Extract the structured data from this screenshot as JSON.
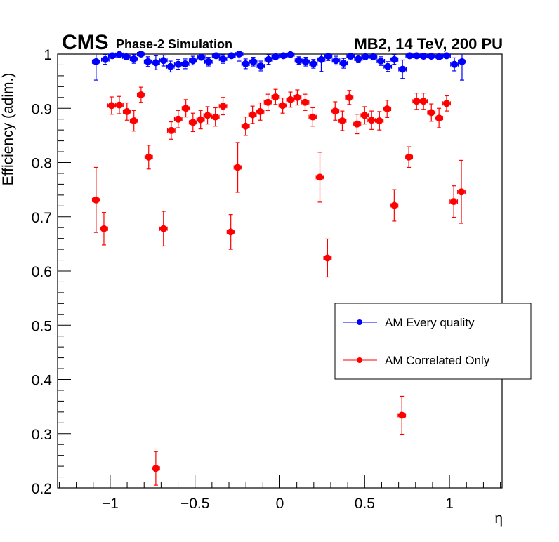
{
  "chart_data": {
    "type": "scatter",
    "title_left_main": "CMS",
    "title_left_sub": "Phase-2 Simulation",
    "title_right": "MB2, 14 TeV, 200 PU",
    "xlabel": "η",
    "ylabel": "Efficiency (adim.)",
    "xlim": [
      -1.31,
      1.31
    ],
    "ylim": [
      0.2,
      1.0
    ],
    "xticks": [
      -1,
      -0.5,
      0,
      0.5,
      1
    ],
    "xtick_labels": [
      "−1",
      "−0.5",
      "0",
      "0.5",
      "1"
    ],
    "yticks": [
      0.2,
      0.3,
      0.4,
      0.5,
      0.6,
      0.7,
      0.8,
      0.9,
      1.0
    ],
    "ytick_labels": [
      "0.2",
      "0.3",
      "0.4",
      "0.5",
      "0.6",
      "0.7",
      "0.8",
      "0.9",
      "1"
    ],
    "grid": false,
    "legend_position": "center-right",
    "x_bin_half_width": 0.022,
    "series": [
      {
        "name": "AM Every quality",
        "color": "#0000ff",
        "x": [
          -1.083,
          -1.029,
          -0.988,
          -0.946,
          -0.905,
          -0.86,
          -0.818,
          -0.777,
          -0.731,
          -0.686,
          -0.645,
          -0.599,
          -0.558,
          -0.512,
          -0.463,
          -0.421,
          -0.376,
          -0.335,
          -0.285,
          -0.24,
          -0.202,
          -0.157,
          -0.112,
          -0.066,
          -0.025,
          0.021,
          0.062,
          0.112,
          0.153,
          0.198,
          0.244,
          0.285,
          0.331,
          0.376,
          0.417,
          0.463,
          0.504,
          0.55,
          0.595,
          0.636,
          0.674,
          0.723,
          0.765,
          0.806,
          0.847,
          0.893,
          0.938,
          0.983,
          1.029,
          1.074
        ],
        "y": [
          0.986,
          0.99,
          0.997,
          0.999,
          0.995,
          0.991,
          1.0,
          0.986,
          0.984,
          0.988,
          0.977,
          0.981,
          0.982,
          0.988,
          0.994,
          0.986,
          0.997,
          0.991,
          0.997,
          1.0,
          0.982,
          0.986,
          0.978,
          0.99,
          0.995,
          0.997,
          0.999,
          0.988,
          0.986,
          0.982,
          0.99,
          0.996,
          0.988,
          0.983,
          0.996,
          0.991,
          0.995,
          0.995,
          0.987,
          0.977,
          0.99,
          0.972,
          0.997,
          0.997,
          0.996,
          0.996,
          0.995,
          0.997,
          0.981,
          0.986
        ],
        "yerr": [
          0.034,
          0.009,
          0.004,
          0.003,
          0.005,
          0.008,
          0.003,
          0.009,
          0.013,
          0.01,
          0.01,
          0.009,
          0.009,
          0.008,
          0.005,
          0.008,
          0.004,
          0.008,
          0.004,
          0.013,
          0.009,
          0.008,
          0.009,
          0.009,
          0.005,
          0.004,
          0.003,
          0.007,
          0.008,
          0.008,
          0.022,
          0.008,
          0.008,
          0.009,
          0.005,
          0.007,
          0.005,
          0.005,
          0.008,
          0.009,
          0.009,
          0.017,
          0.003,
          0.003,
          0.003,
          0.004,
          0.005,
          0.003,
          0.012,
          0.034
        ]
      },
      {
        "name": "AM Correlated Only",
        "color": "#ff0000",
        "x": [
          -1.083,
          -1.037,
          -0.992,
          -0.946,
          -0.901,
          -0.86,
          -0.818,
          -0.773,
          -0.731,
          -0.686,
          -0.64,
          -0.599,
          -0.554,
          -0.512,
          -0.467,
          -0.426,
          -0.38,
          -0.335,
          -0.289,
          -0.248,
          -0.202,
          -0.161,
          -0.116,
          -0.07,
          -0.025,
          0.017,
          0.062,
          0.103,
          0.149,
          0.194,
          0.236,
          0.281,
          0.326,
          0.368,
          0.409,
          0.455,
          0.5,
          0.541,
          0.587,
          0.632,
          0.674,
          0.719,
          0.76,
          0.806,
          0.847,
          0.893,
          0.938,
          0.983,
          1.025,
          1.07
        ],
        "y": [
          0.731,
          0.678,
          0.905,
          0.906,
          0.894,
          0.877,
          0.925,
          0.81,
          0.236,
          0.678,
          0.859,
          0.88,
          0.9,
          0.874,
          0.879,
          0.887,
          0.884,
          0.904,
          0.672,
          0.791,
          0.867,
          0.888,
          0.894,
          0.911,
          0.921,
          0.905,
          0.916,
          0.92,
          0.911,
          0.884,
          0.773,
          0.624,
          0.895,
          0.877,
          0.92,
          0.871,
          0.887,
          0.878,
          0.877,
          0.899,
          0.721,
          0.334,
          0.81,
          0.913,
          0.913,
          0.892,
          0.882,
          0.909,
          0.728,
          0.746
        ],
        "yerr": [
          0.06,
          0.03,
          0.016,
          0.016,
          0.016,
          0.019,
          0.014,
          0.022,
          0.031,
          0.032,
          0.016,
          0.016,
          0.016,
          0.017,
          0.017,
          0.016,
          0.017,
          0.016,
          0.032,
          0.046,
          0.017,
          0.016,
          0.016,
          0.015,
          0.014,
          0.014,
          0.014,
          0.014,
          0.015,
          0.017,
          0.046,
          0.035,
          0.017,
          0.018,
          0.013,
          0.018,
          0.016,
          0.017,
          0.017,
          0.016,
          0.029,
          0.035,
          0.019,
          0.015,
          0.015,
          0.016,
          0.018,
          0.014,
          0.029,
          0.058
        ]
      }
    ]
  }
}
